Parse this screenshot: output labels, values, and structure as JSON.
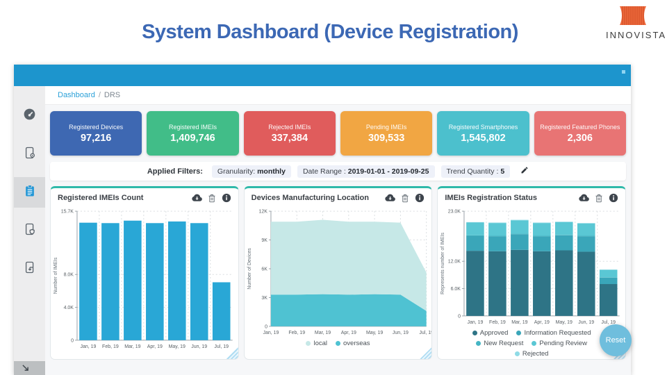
{
  "page": {
    "title": "System Dashboard (Device Registration)",
    "brand": "INNOVISTA",
    "brand_logo_icon": "striped-lampshade-icon"
  },
  "breadcrumb": {
    "home": "Dashboard",
    "separator": "/",
    "current": "DRS"
  },
  "sidebar": {
    "items": [
      {
        "icon": "gauge-icon",
        "active": false
      },
      {
        "icon": "device-settings-icon",
        "active": false
      },
      {
        "icon": "clipboard-icon",
        "active": true
      },
      {
        "icon": "device-shield-icon",
        "active": false
      },
      {
        "icon": "device-export-icon",
        "active": false
      }
    ],
    "bottom_icon": "collapse-arrow-icon"
  },
  "stat_cards": [
    {
      "label": "Registered Devices",
      "value": "97,216",
      "color": "#3e68b2"
    },
    {
      "label": "Registered IMEIs",
      "value": "1,409,746",
      "color": "#41bd88"
    },
    {
      "label": "Rejected IMEIs",
      "value": "337,384",
      "color": "#e05c5c"
    },
    {
      "label": "Pending IMEIs",
      "value": "309,533",
      "color": "#f1a643"
    },
    {
      "label": "Registered Smartphones",
      "value": "1,545,802",
      "color": "#4cc0cd"
    },
    {
      "label": "Registered Featured Phones",
      "value": "2,306",
      "color": "#e87474"
    }
  ],
  "filters": {
    "label": "Applied Filters:",
    "chips": [
      {
        "prefix": "Granularity: ",
        "value": "monthly"
      },
      {
        "prefix": "Date Range : ",
        "value": "2019-01-01 - 2019-09-25"
      },
      {
        "prefix": "Trend Quantity : ",
        "value": "5"
      }
    ],
    "edit_icon": "pencil-icon"
  },
  "card_toolbar_icons": [
    "download-icon",
    "delete-icon",
    "info-icon"
  ],
  "reset_button": {
    "label": "Reset",
    "color": "#6fbedd"
  },
  "chart_data": [
    {
      "type": "bar",
      "title": "Registered IMEIs Count",
      "ylabel": "Number of IMEIs",
      "categories": [
        "Jan, 19",
        "Feb, 19",
        "Mar, 19",
        "Apr, 19",
        "May, 19",
        "Jun, 19",
        "Jul, 19"
      ],
      "values": [
        14300,
        14250,
        14550,
        14250,
        14450,
        14250,
        7050
      ],
      "ylim": [
        0,
        15700
      ],
      "yticks": [
        {
          "v": 0,
          "label": "0"
        },
        {
          "v": 4000,
          "label": "4.0K"
        },
        {
          "v": 8000,
          "label": "8.0K"
        },
        {
          "v": 15700,
          "label": "15.7K"
        }
      ],
      "color": "#29a7d6",
      "grid": "dotted"
    },
    {
      "type": "area",
      "title": "Devices Manufacturing Location",
      "ylabel": "Number of Devices",
      "categories": [
        "Jan, 19",
        "Feb, 19",
        "Mar, 19",
        "Apr, 19",
        "May, 19",
        "Jun, 19",
        "Jul, 19"
      ],
      "series": [
        {
          "name": "local",
          "color": "#c6e8e7",
          "values": [
            7600,
            7600,
            7750,
            7600,
            7550,
            7500,
            4000
          ]
        },
        {
          "name": "overseas",
          "color": "#4fc2d2",
          "values": [
            3300,
            3300,
            3350,
            3300,
            3350,
            3300,
            1600
          ]
        }
      ],
      "stack_bottom_to_top": [
        "overseas",
        "local"
      ],
      "ylim": [
        0,
        12000
      ],
      "yticks": [
        {
          "v": 0,
          "label": "0"
        },
        {
          "v": 3000,
          "label": "3K"
        },
        {
          "v": 6000,
          "label": "6K"
        },
        {
          "v": 9000,
          "label": "9K"
        },
        {
          "v": 12000,
          "label": "12K"
        }
      ],
      "legend_position": "bottom",
      "grid": "dotted"
    },
    {
      "type": "stacked-bar",
      "title": "IMEIs Registration Status",
      "ylabel": "Represents number of IMEIs",
      "categories": [
        "Jan, 19",
        "Feb, 19",
        "Mar, 19",
        "Apr, 19",
        "May, 19",
        "Jun, 19",
        "Jul, 19"
      ],
      "series": [
        {
          "name": "Approved",
          "color": "#2e7486",
          "values": [
            14300,
            14200,
            14500,
            14200,
            14400,
            14100,
            7000
          ]
        },
        {
          "name": "Information Requested",
          "color": "#3aa6b9",
          "values": [
            3300,
            3300,
            3450,
            3300,
            3300,
            3400,
            1400
          ]
        },
        {
          "name": "New Request",
          "color": "#45b5c4",
          "values": [
            100,
            100,
            100,
            100,
            100,
            100,
            100
          ]
        },
        {
          "name": "Pending Review",
          "color": "#5ac7d4",
          "values": [
            2800,
            2800,
            2950,
            2800,
            2800,
            2700,
            1600
          ]
        },
        {
          "name": "Rejected",
          "color": "#8fdbe6",
          "values": [
            100,
            100,
            100,
            100,
            100,
            100,
            100
          ]
        }
      ],
      "ylim": [
        0,
        23000
      ],
      "yticks": [
        {
          "v": 0,
          "label": "0"
        },
        {
          "v": 6000,
          "label": "6.0K"
        },
        {
          "v": 12000,
          "label": "12.0K"
        },
        {
          "v": 23000,
          "label": "23.0K"
        }
      ],
      "legend_position": "bottom",
      "grid": "dotted"
    }
  ]
}
